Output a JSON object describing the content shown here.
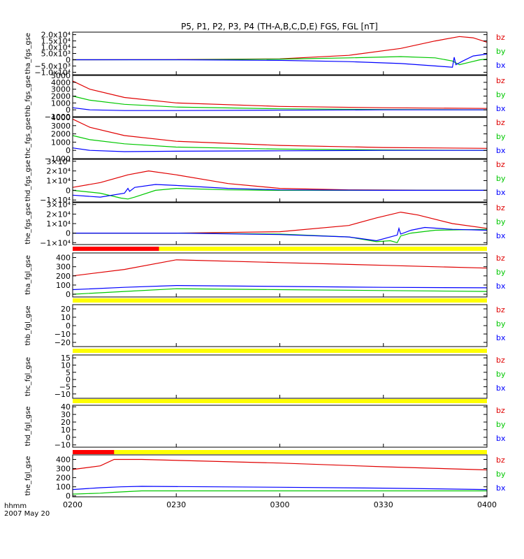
{
  "chart_data": {
    "type": "line",
    "title": "P5, P1, P2, P3, P4 (TH-A,B,C,D,E) FGS, FGL [nT]",
    "x_axis": {
      "ticks": [
        "0200",
        "0230",
        "0300",
        "0330",
        "0400"
      ],
      "label_line1": "hhmm",
      "label_line2": "2007 May 20",
      "range_minutes": [
        0,
        120
      ]
    },
    "colors": {
      "bx": "#0000ff",
      "by": "#00c800",
      "bz": "#e00000",
      "bar_yellow": "#ffff00",
      "bar_red": "#ff0000"
    },
    "panels": [
      {
        "id": "tha_fgs_gse",
        "ylabel": "tha_fgs_gse",
        "ylim": [
          -12000,
          22000
        ],
        "yticks": [
          "2.0x10⁴",
          "1.5x10⁴",
          "1.0x10⁴",
          "5.0x10³",
          "0",
          "−5.0x10³",
          "−1.0x10⁴"
        ],
        "ytick_values": [
          20000,
          15000,
          10000,
          5000,
          0,
          -5000,
          -10000
        ],
        "series": [
          {
            "name": "bz",
            "x": [
              0,
              30,
              60,
              80,
              95,
              105,
              112,
              116,
              120
            ],
            "y": [
              0,
              100,
              700,
              3500,
              9000,
              15000,
              18500,
              17500,
              14000
            ]
          },
          {
            "name": "by",
            "x": [
              0,
              30,
              60,
              80,
              95,
              105,
              110,
              112,
              115,
              118,
              120
            ],
            "y": [
              0,
              0,
              500,
              1500,
              2500,
              1500,
              -1000,
              -4000,
              -2000,
              0,
              500
            ]
          },
          {
            "name": "bx",
            "x": [
              0,
              30,
              60,
              80,
              95,
              105,
              110,
              110.5,
              111,
              113,
              116,
              120
            ],
            "y": [
              0,
              0,
              -500,
              -1500,
              -3000,
              -5000,
              -6000,
              2000,
              -4000,
              -1000,
              3000,
              4500
            ]
          }
        ],
        "legend": [
          "bz",
          "by",
          "bx"
        ]
      },
      {
        "id": "thb_fgs_gse",
        "ylabel": "thb_fgs_gse",
        "ylim": [
          -1000,
          5000
        ],
        "yticks": [
          "5000",
          "4000",
          "3000",
          "2000",
          "1000",
          "0",
          "−1000"
        ],
        "ytick_values": [
          5000,
          4000,
          3000,
          2000,
          1000,
          0,
          -1000
        ],
        "series": [
          {
            "name": "bz",
            "x": [
              0,
              5,
              15,
              30,
              60,
              90,
              120
            ],
            "y": [
              4200,
              3000,
              1800,
              1000,
              500,
              300,
              200
            ]
          },
          {
            "name": "by",
            "x": [
              0,
              5,
              15,
              30,
              60,
              90,
              120
            ],
            "y": [
              2000,
              1400,
              800,
              400,
              150,
              50,
              0
            ]
          },
          {
            "name": "bx",
            "x": [
              0,
              5,
              15,
              30,
              60,
              90,
              120
            ],
            "y": [
              300,
              0,
              -100,
              -100,
              -50,
              0,
              0
            ]
          }
        ],
        "legend": [
          "bz",
          "by",
          "bx"
        ]
      },
      {
        "id": "thc_fgs_gse",
        "ylabel": "thc_fgs_gse",
        "ylim": [
          -1000,
          4000
        ],
        "yticks": [
          "4000",
          "3000",
          "2000",
          "1000",
          "0",
          "−1000"
        ],
        "ytick_values": [
          4000,
          3000,
          2000,
          1000,
          0,
          -1000
        ],
        "series": [
          {
            "name": "bz",
            "x": [
              0,
              5,
              15,
              30,
              60,
              90,
              120
            ],
            "y": [
              3800,
              2800,
              1800,
              1100,
              600,
              350,
              250
            ]
          },
          {
            "name": "by",
            "x": [
              0,
              5,
              15,
              30,
              60,
              90,
              120
            ],
            "y": [
              1800,
              1300,
              800,
              400,
              150,
              50,
              0
            ]
          },
          {
            "name": "bx",
            "x": [
              0,
              5,
              15,
              30,
              60,
              90,
              120
            ],
            "y": [
              300,
              0,
              -150,
              -100,
              -50,
              0,
              0
            ]
          }
        ],
        "legend": [
          "bz",
          "by",
          "bx"
        ]
      },
      {
        "id": "thd_fgs_gse",
        "ylabel": "thd_fgs_gse",
        "ylim": [
          -12000,
          32000
        ],
        "yticks": [
          "3×10⁴",
          "2×10⁴",
          "1×10⁴",
          "0",
          "−1×10⁴"
        ],
        "ytick_values": [
          30000,
          20000,
          10000,
          0,
          -10000
        ],
        "series": [
          {
            "name": "bz",
            "x": [
              0,
              8,
              16,
              22,
              30,
              45,
              60,
              80,
              100,
              120
            ],
            "y": [
              3000,
              8000,
              16000,
              20000,
              16000,
              7000,
              2000,
              500,
              200,
              0
            ]
          },
          {
            "name": "by",
            "x": [
              0,
              8,
              14,
              16,
              18,
              24,
              30,
              45,
              60,
              90,
              120
            ],
            "y": [
              0,
              -3000,
              -8000,
              -9000,
              -7000,
              0,
              2000,
              500,
              0,
              0,
              0
            ]
          },
          {
            "name": "bx",
            "x": [
              0,
              8,
              15,
              16,
              16.5,
              18,
              24,
              30,
              45,
              60,
              90,
              120
            ],
            "y": [
              -5000,
              -7000,
              -3000,
              2000,
              -1000,
              3000,
              6000,
              5000,
              2000,
              500,
              0,
              0
            ]
          }
        ],
        "legend": [
          "bz",
          "by",
          "bx"
        ]
      },
      {
        "id": "the_fgs_gse",
        "ylabel": "the_fgs_gse",
        "ylim": [
          -12000,
          32000
        ],
        "yticks": [
          "3×10⁴",
          "2×10⁴",
          "1×10⁴",
          "0",
          "−1×10⁴"
        ],
        "ytick_values": [
          30000,
          20000,
          10000,
          0,
          -10000
        ],
        "series": [
          {
            "name": "bz",
            "x": [
              0,
              30,
              60,
              80,
              88,
              95,
              100,
              110,
              120
            ],
            "y": [
              0,
              0,
              1500,
              8000,
              16000,
              22000,
              19000,
              10000,
              5000
            ]
          },
          {
            "name": "by",
            "x": [
              0,
              30,
              60,
              80,
              88,
              92,
              94,
              95,
              98,
              105,
              120
            ],
            "y": [
              0,
              0,
              -1000,
              -4000,
              -9000,
              -8000,
              -10000,
              -3000,
              0,
              3000,
              4000
            ]
          },
          {
            "name": "bx",
            "x": [
              0,
              30,
              60,
              80,
              88,
              94,
              94.5,
              95,
              98,
              102,
              110,
              120
            ],
            "y": [
              0,
              0,
              -1500,
              -4000,
              -8000,
              -2000,
              5000,
              -1000,
              3000,
              6000,
              4000,
              3000
            ]
          }
        ],
        "legend": [
          "bz",
          "by",
          "bx"
        ]
      },
      {
        "id": "tha_fgl_gse",
        "ylabel": "tha_fgl_gse",
        "ylim": [
          -30,
          450
        ],
        "yticks": [
          "400",
          "300",
          "200",
          "100",
          "0"
        ],
        "ytick_values": [
          400,
          300,
          200,
          100,
          0
        ],
        "series": [
          {
            "name": "bz",
            "x": [
              0,
              15,
              30,
              60,
              90,
              120
            ],
            "y": [
              200,
              270,
              375,
              345,
              315,
              285
            ]
          },
          {
            "name": "by",
            "x": [
              0,
              15,
              30,
              60,
              90,
              120
            ],
            "y": [
              0,
              30,
              60,
              50,
              40,
              30
            ]
          },
          {
            "name": "bx",
            "x": [
              0,
              15,
              30,
              60,
              90,
              120
            ],
            "y": [
              50,
              75,
              95,
              85,
              75,
              70
            ]
          }
        ],
        "legend": [
          "bz",
          "by",
          "bx"
        ]
      },
      {
        "id": "thb_fgl_gse",
        "ylabel": "thb_fgl_gse",
        "ylim": [
          -25,
          25
        ],
        "yticks": [
          "20",
          "10",
          "0",
          "−10",
          "−20"
        ],
        "ytick_values": [
          20,
          10,
          0,
          -10,
          -20
        ],
        "series": [],
        "legend": [
          "bz",
          "by",
          "bx"
        ]
      },
      {
        "id": "thc_fgl_gse",
        "ylabel": "thc_fgl_gse",
        "ylim": [
          -13,
          17
        ],
        "yticks": [
          "15",
          "10",
          "5",
          "0",
          "−5",
          "−10"
        ],
        "ytick_values": [
          15,
          10,
          5,
          0,
          -5,
          -10
        ],
        "series": [],
        "legend": [
          "bz",
          "by",
          "bx"
        ]
      },
      {
        "id": "thd_fgl_gse",
        "ylabel": "thd_fgl_gse",
        "ylim": [
          -13,
          42
        ],
        "yticks": [
          "40",
          "30",
          "20",
          "10",
          "0",
          "−10"
        ],
        "ytick_values": [
          40,
          30,
          20,
          10,
          0,
          -10
        ],
        "series": [],
        "legend": [
          "bz",
          "by",
          "bx"
        ]
      },
      {
        "id": "the_fgl_gse",
        "ylabel": "the_fgl_gse",
        "ylim": [
          -10,
          450
        ],
        "yticks": [
          "400",
          "300",
          "200",
          "100",
          "0"
        ],
        "ytick_values": [
          400,
          300,
          200,
          100,
          0
        ],
        "series": [
          {
            "name": "bz",
            "x": [
              0,
              8,
              12,
              20,
              60,
              90,
              120
            ],
            "y": [
              290,
              330,
              400,
              400,
              360,
              320,
              285
            ]
          },
          {
            "name": "by",
            "x": [
              0,
              8,
              12,
              20,
              60,
              90,
              120
            ],
            "y": [
              20,
              30,
              40,
              55,
              55,
              55,
              55
            ]
          },
          {
            "name": "bx",
            "x": [
              0,
              8,
              14,
              20,
              60,
              90,
              120
            ],
            "y": [
              70,
              90,
              100,
              105,
              95,
              85,
              70
            ]
          }
        ],
        "legend": [
          "bz",
          "by",
          "bx"
        ]
      }
    ],
    "status_bars": [
      {
        "after_panel": "the_fgs_gse",
        "red_to_minute": 25
      },
      {
        "after_panel": "tha_fgl_gse",
        "red_to_minute": 0
      },
      {
        "after_panel": "thb_fgl_gse",
        "red_to_minute": 0
      },
      {
        "after_panel": "thc_fgl_gse",
        "red_to_minute": 0
      },
      {
        "after_panel": "thd_fgl_gse",
        "red_to_minute": 12
      }
    ]
  }
}
